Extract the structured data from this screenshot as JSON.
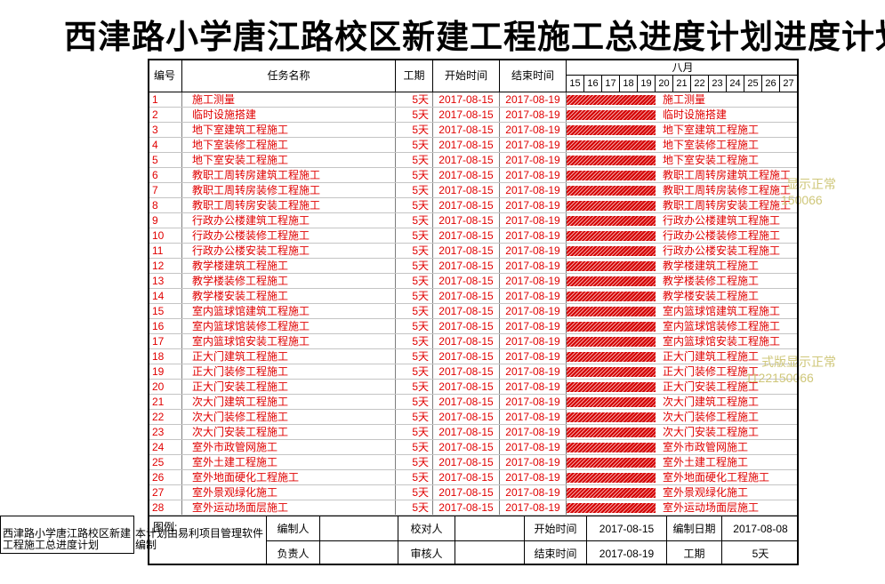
{
  "colors": {
    "task_text": "#e00000",
    "bar": "#d40000",
    "bar_stripe": "#f4a6a6",
    "watermark": "#cfc77a"
  },
  "chart_data": {
    "type": "bar",
    "title": "西津路小学唐江路校区新建工程施工总进度计划进度计划",
    "columns": {
      "id": "编号",
      "name": "任务名称",
      "duration": "工期",
      "start": "开始时间",
      "end": "结束时间"
    },
    "x_axis": {
      "month": "八月",
      "days": [
        "15",
        "16",
        "17",
        "18",
        "19",
        "20",
        "21",
        "22",
        "23",
        "24",
        "25",
        "26",
        "27"
      ]
    },
    "tasks": [
      {
        "id": "1",
        "name": "施工测量",
        "duration": "5天",
        "start": "2017-08-15",
        "end": "2017-08-19"
      },
      {
        "id": "2",
        "name": "临时设施搭建",
        "duration": "5天",
        "start": "2017-08-15",
        "end": "2017-08-19"
      },
      {
        "id": "3",
        "name": "地下室建筑工程施工",
        "duration": "5天",
        "start": "2017-08-15",
        "end": "2017-08-19"
      },
      {
        "id": "4",
        "name": "地下室装修工程施工",
        "duration": "5天",
        "start": "2017-08-15",
        "end": "2017-08-19"
      },
      {
        "id": "5",
        "name": "地下室安装工程施工",
        "duration": "5天",
        "start": "2017-08-15",
        "end": "2017-08-19"
      },
      {
        "id": "6",
        "name": "教职工周转房建筑工程施工",
        "duration": "5天",
        "start": "2017-08-15",
        "end": "2017-08-19"
      },
      {
        "id": "7",
        "name": "教职工周转房装修工程施工",
        "duration": "5天",
        "start": "2017-08-15",
        "end": "2017-08-19"
      },
      {
        "id": "8",
        "name": "教职工周转房安装工程施工",
        "duration": "5天",
        "start": "2017-08-15",
        "end": "2017-08-19"
      },
      {
        "id": "9",
        "name": "行政办公楼建筑工程施工",
        "duration": "5天",
        "start": "2017-08-15",
        "end": "2017-08-19"
      },
      {
        "id": "10",
        "name": "行政办公楼装修工程施工",
        "duration": "5天",
        "start": "2017-08-15",
        "end": "2017-08-19"
      },
      {
        "id": "11",
        "name": "行政办公楼安装工程施工",
        "duration": "5天",
        "start": "2017-08-15",
        "end": "2017-08-19"
      },
      {
        "id": "12",
        "name": "教学楼建筑工程施工",
        "duration": "5天",
        "start": "2017-08-15",
        "end": "2017-08-19"
      },
      {
        "id": "13",
        "name": "教学楼装修工程施工",
        "duration": "5天",
        "start": "2017-08-15",
        "end": "2017-08-19"
      },
      {
        "id": "14",
        "name": "教学楼安装工程施工",
        "duration": "5天",
        "start": "2017-08-15",
        "end": "2017-08-19"
      },
      {
        "id": "15",
        "name": "室内篮球馆建筑工程施工",
        "duration": "5天",
        "start": "2017-08-15",
        "end": "2017-08-19"
      },
      {
        "id": "16",
        "name": "室内篮球馆装修工程施工",
        "duration": "5天",
        "start": "2017-08-15",
        "end": "2017-08-19"
      },
      {
        "id": "17",
        "name": "室内篮球馆安装工程施工",
        "duration": "5天",
        "start": "2017-08-15",
        "end": "2017-08-19"
      },
      {
        "id": "18",
        "name": "正大门建筑工程施工",
        "duration": "5天",
        "start": "2017-08-15",
        "end": "2017-08-19"
      },
      {
        "id": "19",
        "name": "正大门装修工程施工",
        "duration": "5天",
        "start": "2017-08-15",
        "end": "2017-08-19"
      },
      {
        "id": "20",
        "name": "正大门安装工程施工",
        "duration": "5天",
        "start": "2017-08-15",
        "end": "2017-08-19"
      },
      {
        "id": "21",
        "name": "次大门建筑工程施工",
        "duration": "5天",
        "start": "2017-08-15",
        "end": "2017-08-19"
      },
      {
        "id": "22",
        "name": "次大门装修工程施工",
        "duration": "5天",
        "start": "2017-08-15",
        "end": "2017-08-19"
      },
      {
        "id": "23",
        "name": "次大门安装工程施工",
        "duration": "5天",
        "start": "2017-08-15",
        "end": "2017-08-19"
      },
      {
        "id": "24",
        "name": "室外市政管网施工",
        "duration": "5天",
        "start": "2017-08-15",
        "end": "2017-08-19"
      },
      {
        "id": "25",
        "name": "室外土建工程施工",
        "duration": "5天",
        "start": "2017-08-15",
        "end": "2017-08-19"
      },
      {
        "id": "26",
        "name": "室外地面硬化工程施工",
        "duration": "5天",
        "start": "2017-08-15",
        "end": "2017-08-19"
      },
      {
        "id": "27",
        "name": "室外景观绿化施工",
        "duration": "5天",
        "start": "2017-08-15",
        "end": "2017-08-19"
      },
      {
        "id": "28",
        "name": "室外运动场面层施工",
        "duration": "5天",
        "start": "2017-08-15",
        "end": "2017-08-19"
      }
    ]
  },
  "footer": {
    "legend_label": "图例:",
    "prepared_by_label": "编制人",
    "checked_by_label": "校对人",
    "start_label": "开始时间",
    "start": "2017-08-15",
    "date_label": "编制日期",
    "date": "2017-08-08",
    "owner_label": "负责人",
    "reviewer_label": "审核人",
    "end_label": "结束时间",
    "end": "2017-08-19",
    "duration_label": "工期",
    "duration": "5天"
  },
  "project_name": "西津路小学唐江路校区新建工程施工总进度计划",
  "software_note": "本计划由易利项目管理软件编制",
  "watermark": [
    {
      "lines": [
        "显示正常",
        "150066"
      ]
    },
    {
      "lines": [
        "式版显示正常",
        "1122150066"
      ]
    }
  ]
}
